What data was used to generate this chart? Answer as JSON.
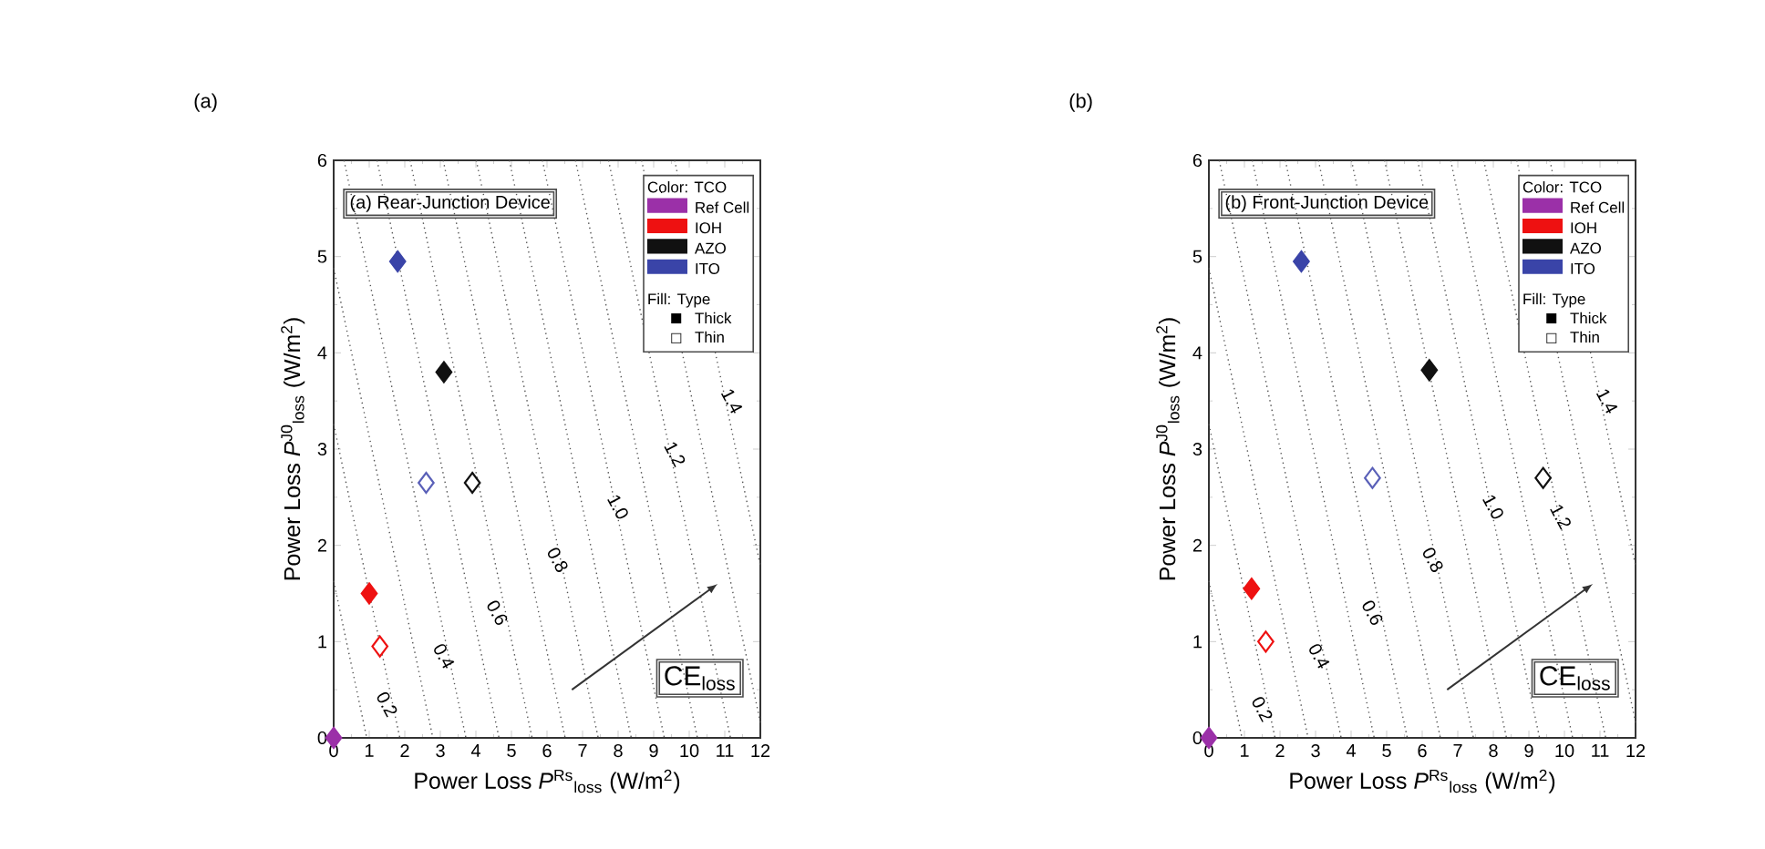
{
  "chart_data": [
    {
      "type": "scatter",
      "title": "(a)",
      "xlabel": "Power Loss *P*$^{Rs}$$_{loss}$ (W/m$^{2}$)",
      "ylabel": "Power Loss *P*$^{J0}$$_{loss}$ (W/m$^{2}$)",
      "xlim": [
        0,
        12
      ],
      "ylim": [
        0,
        6
      ],
      "xticks": [
        0,
        1,
        2,
        3,
        4,
        5,
        6,
        7,
        8,
        9,
        10,
        11,
        12
      ],
      "yticks": [
        0,
        1,
        2,
        3,
        4,
        5,
        6
      ],
      "marker": "diamond",
      "legend": "top right",
      "legend_title": "Color: TCO",
      "series": [
        {
          "type": "line",
          "marker": "none",
          "line_style": "dotted",
          "color": "#555555",
          "x": [
            0,
            0.93
          ],
          "values": [
            1.63,
            0
          ]
        },
        {
          "type": "line",
          "marker": "none",
          "line_style": "dotted",
          "color": "#555555",
          "x": [
            0,
            1.86
          ],
          "values": [
            3.26,
            0
          ]
        },
        {
          "type": "line",
          "marker": "none",
          "line_style": "dotted",
          "color": "#555555",
          "x": [
            0,
            2.79
          ],
          "values": [
            4.88,
            0
          ]
        },
        {
          "type": "line",
          "marker": "none",
          "line_style": "dotted",
          "color": "#555555",
          "x": [
            0.29,
            3.72
          ],
          "values": [
            6,
            0
          ]
        },
        {
          "type": "line",
          "marker": "none",
          "line_style": "dotted",
          "color": "#555555",
          "x": [
            1.22,
            4.65
          ],
          "values": [
            6,
            0
          ]
        },
        {
          "type": "line",
          "marker": "none",
          "line_style": "dotted",
          "color": "#555555",
          "x": [
            2.15,
            5.58
          ],
          "values": [
            6,
            0
          ]
        },
        {
          "type": "line",
          "marker": "none",
          "line_style": "dotted",
          "color": "#555555",
          "x": [
            3.08,
            6.51
          ],
          "values": [
            6,
            0
          ]
        },
        {
          "type": "line",
          "marker": "none",
          "line_style": "dotted",
          "color": "#555555",
          "x": [
            4.01,
            7.44
          ],
          "values": [
            6,
            0
          ]
        },
        {
          "type": "line",
          "marker": "none",
          "line_style": "dotted",
          "color": "#555555",
          "x": [
            4.94,
            8.37
          ],
          "values": [
            6,
            0
          ]
        },
        {
          "type": "line",
          "marker": "none",
          "line_style": "dotted",
          "color": "#555555",
          "x": [
            5.87,
            9.3
          ],
          "values": [
            6,
            0
          ]
        },
        {
          "type": "line",
          "marker": "none",
          "line_style": "dotted",
          "color": "#555555",
          "x": [
            6.8,
            10.23
          ],
          "values": [
            6,
            0
          ]
        },
        {
          "type": "line",
          "marker": "none",
          "line_style": "dotted",
          "color": "#555555",
          "x": [
            7.73,
            11.16
          ],
          "values": [
            6,
            0
          ]
        },
        {
          "type": "line",
          "marker": "none",
          "line_style": "dotted",
          "color": "#555555",
          "x": [
            8.66,
            12
          ],
          "values": [
            6,
            0.16
          ]
        },
        {
          "type": "line",
          "marker": "none",
          "line_style": "dotted",
          "color": "#555555",
          "x": [
            9.59,
            12
          ],
          "values": [
            6,
            1.79
          ]
        },
        {
          "name": "Ref Cell",
          "color": "#9b30a8",
          "x": [
            0
          ],
          "values": [
            0
          ]
        },
        {
          "name": "IOH",
          "color": "#ee1111",
          "x": [
            1.0
          ],
          "values": [
            1.5
          ]
        },
        {
          "name": "AZO",
          "color": "#111111",
          "x": [
            3.1
          ],
          "values": [
            3.8
          ]
        },
        {
          "name": "ITO",
          "color": "#3a44a8",
          "x": [
            1.8
          ],
          "values": [
            4.95
          ]
        },
        {
          "color": "#ee1111",
          "x": [
            1.3
          ],
          "values": [
            0.95
          ]
        },
        {
          "color": "#111111",
          "x": [
            3.9
          ],
          "values": [
            2.65
          ]
        },
        {
          "color": "#5a60b8",
          "x": [
            2.6
          ],
          "values": [
            2.65
          ]
        }
      ],
      "annotations": [
        "(a) Rear-Junction Device",
        "CE$_{loss}$",
        "Fill: Type",
        "Thick",
        "Thin",
        {
          "text": "0.2",
          "x": 1.5,
          "y": 0.35
        },
        {
          "text": "0.4",
          "x": 3.1,
          "y": 0.85
        },
        {
          "text": "0.6",
          "x": 4.6,
          "y": 1.3
        },
        {
          "text": "0.8",
          "x": 6.3,
          "y": 1.85
        },
        {
          "text": "1.0",
          "x": 8.0,
          "y": 2.4
        },
        {
          "text": "1.2",
          "x": 9.6,
          "y": 2.95
        },
        {
          "text": "1.4",
          "x": 11.2,
          "y": 3.5
        }
      ]
    },
    {
      "type": "scatter",
      "title": "(b)",
      "xlabel": "Power Loss *P*$^{Rs}$$_{loss}$ (W/m$^{2}$)",
      "ylabel": "Power Loss *P*$^{J0}$$_{loss}$ (W/m$^{2}$)",
      "xlim": [
        0,
        12
      ],
      "ylim": [
        0,
        6
      ],
      "xticks": [
        0,
        1,
        2,
        3,
        4,
        5,
        6,
        7,
        8,
        9,
        10,
        11,
        12
      ],
      "yticks": [
        0,
        1,
        2,
        3,
        4,
        5,
        6
      ],
      "marker": "diamond",
      "legend": "top right",
      "legend_title": "Color: TCO",
      "series": [
        {
          "type": "line",
          "marker": "none",
          "line_style": "dotted",
          "color": "#555555",
          "x": [
            0,
            0.93
          ],
          "values": [
            1.63,
            0
          ]
        },
        {
          "type": "line",
          "marker": "none",
          "line_style": "dotted",
          "color": "#555555",
          "x": [
            0,
            1.86
          ],
          "values": [
            3.26,
            0
          ]
        },
        {
          "type": "line",
          "marker": "none",
          "line_style": "dotted",
          "color": "#555555",
          "x": [
            0,
            2.79
          ],
          "values": [
            4.88,
            0
          ]
        },
        {
          "type": "line",
          "marker": "none",
          "line_style": "dotted",
          "color": "#555555",
          "x": [
            0.29,
            3.72
          ],
          "values": [
            6,
            0
          ]
        },
        {
          "type": "line",
          "marker": "none",
          "line_style": "dotted",
          "color": "#555555",
          "x": [
            1.22,
            4.65
          ],
          "values": [
            6,
            0
          ]
        },
        {
          "type": "line",
          "marker": "none",
          "line_style": "dotted",
          "color": "#555555",
          "x": [
            2.15,
            5.58
          ],
          "values": [
            6,
            0
          ]
        },
        {
          "type": "line",
          "marker": "none",
          "line_style": "dotted",
          "color": "#555555",
          "x": [
            3.08,
            6.51
          ],
          "values": [
            6,
            0
          ]
        },
        {
          "type": "line",
          "marker": "none",
          "line_style": "dotted",
          "color": "#555555",
          "x": [
            4.01,
            7.44
          ],
          "values": [
            6,
            0
          ]
        },
        {
          "type": "line",
          "marker": "none",
          "line_style": "dotted",
          "color": "#555555",
          "x": [
            4.94,
            8.37
          ],
          "values": [
            6,
            0
          ]
        },
        {
          "type": "line",
          "marker": "none",
          "line_style": "dotted",
          "color": "#555555",
          "x": [
            5.87,
            9.3
          ],
          "values": [
            6,
            0
          ]
        },
        {
          "type": "line",
          "marker": "none",
          "line_style": "dotted",
          "color": "#555555",
          "x": [
            6.8,
            10.23
          ],
          "values": [
            6,
            0
          ]
        },
        {
          "type": "line",
          "marker": "none",
          "line_style": "dotted",
          "color": "#555555",
          "x": [
            7.73,
            11.16
          ],
          "values": [
            6,
            0
          ]
        },
        {
          "type": "line",
          "marker": "none",
          "line_style": "dotted",
          "color": "#555555",
          "x": [
            8.66,
            12
          ],
          "values": [
            6,
            0.16
          ]
        },
        {
          "type": "line",
          "marker": "none",
          "line_style": "dotted",
          "color": "#555555",
          "x": [
            9.59,
            12
          ],
          "values": [
            6,
            1.79
          ]
        },
        {
          "name": "Ref Cell",
          "color": "#9b30a8",
          "x": [
            0
          ],
          "values": [
            0
          ]
        },
        {
          "name": "IOH",
          "color": "#ee1111",
          "x": [
            1.2
          ],
          "values": [
            1.55
          ]
        },
        {
          "name": "AZO",
          "color": "#111111",
          "x": [
            6.2
          ],
          "values": [
            3.82
          ]
        },
        {
          "name": "ITO",
          "color": "#3a44a8",
          "x": [
            2.6
          ],
          "values": [
            4.95
          ]
        },
        {
          "color": "#ee1111",
          "x": [
            1.6
          ],
          "values": [
            1.0
          ]
        },
        {
          "color": "#111111",
          "x": [
            9.4
          ],
          "values": [
            2.7
          ]
        },
        {
          "color": "#5a60b8",
          "x": [
            4.6
          ],
          "values": [
            2.7
          ]
        }
      ],
      "annotations": [
        "(b) Front-Junction Device",
        "CE$_{loss}$",
        "Fill: Type",
        "Thick",
        "Thin",
        {
          "text": "0.2",
          "x": 1.5,
          "y": 0.3
        },
        {
          "text": "0.4",
          "x": 3.1,
          "y": 0.85
        },
        {
          "text": "0.6",
          "x": 4.6,
          "y": 1.3
        },
        {
          "text": "0.8",
          "x": 6.3,
          "y": 1.85
        },
        {
          "text": "1.0",
          "x": 8.0,
          "y": 2.4
        },
        {
          "text": "1.2",
          "x": 9.9,
          "y": 2.3
        },
        {
          "text": "1.4",
          "x": 11.2,
          "y": 3.5
        }
      ]
    }
  ]
}
